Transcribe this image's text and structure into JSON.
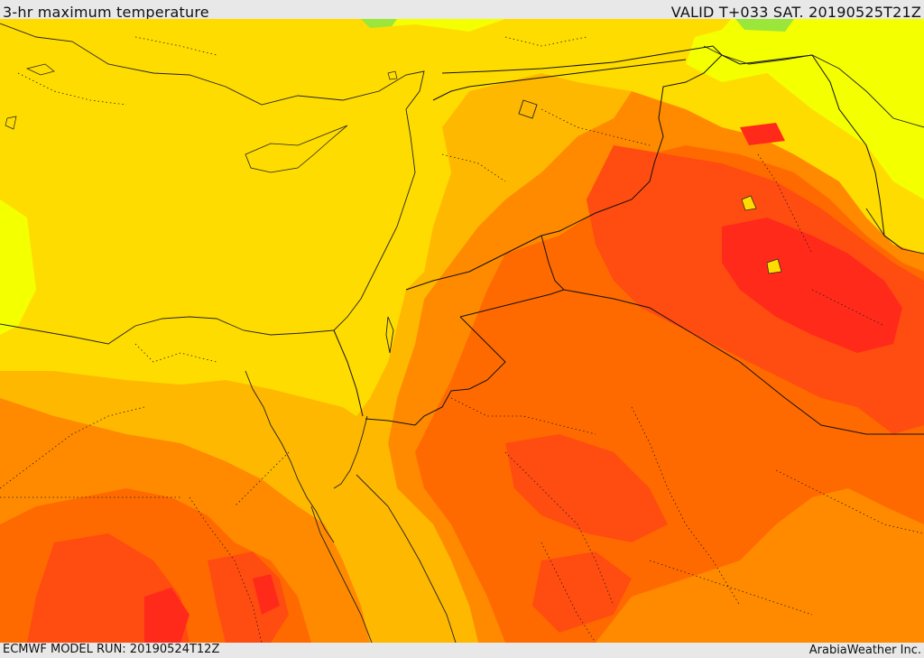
{
  "header": {
    "title": "3-hr maximum temperature",
    "valid": "VALID T+033 SAT. 20190525T21Z"
  },
  "footer": {
    "model_run": "ECMWF MODEL RUN: 20190524T12Z",
    "credit": "ArabiaWeather Inc."
  },
  "map": {
    "layer": "temperature-fill",
    "colors": {
      "green": "#9be63a",
      "light_yellow": "#f4ff00",
      "yellow": "#ffdc00",
      "amber": "#ffb800",
      "orange": "#ff8a00",
      "dark_orange": "#ff6a00",
      "red_orange": "#ff4c10",
      "red": "#ff2a1a"
    }
  }
}
